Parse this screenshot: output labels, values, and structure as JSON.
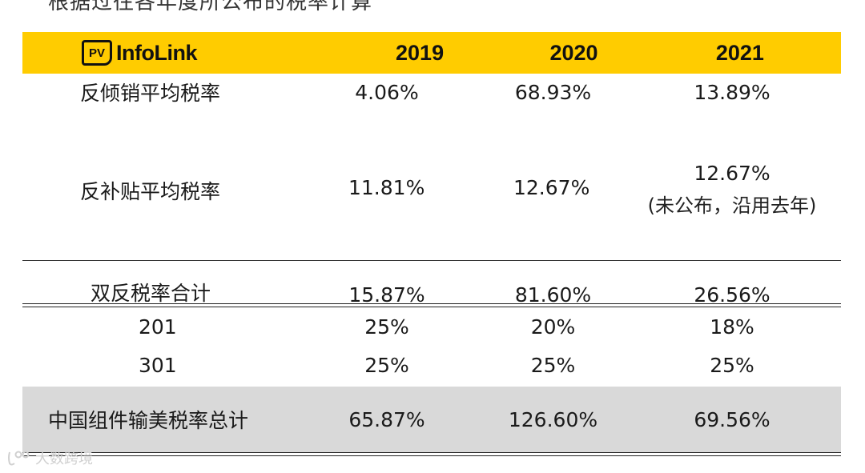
{
  "header_cut_text": "根据过往各年度所公布的税率计算",
  "logo": {
    "badge": "PV",
    "name": "InfoLink"
  },
  "years": [
    "2019",
    "2020",
    "2021"
  ],
  "rows": {
    "antidumping": {
      "label": "反倾销平均税率",
      "v2019": "4.06%",
      "v2020": "68.93%",
      "v2021": "13.89%"
    },
    "subsidy": {
      "label": "反补贴平均税率",
      "v2019": "11.81%",
      "v2020": "12.67%",
      "v2021": "12.67%",
      "v2021_note": "(未公布，沿用去年)"
    },
    "double": {
      "label": "双反税率合计",
      "v2019": "15.87%",
      "v2020": "81.60%",
      "v2021": "26.56%"
    },
    "s201": {
      "label": "201",
      "v2019": "25%",
      "v2020": "20%",
      "v2021": "18%"
    },
    "s301": {
      "label": "301",
      "v2019": "25%",
      "v2020": "25%",
      "v2021": "25%"
    },
    "total": {
      "label": "中国组件输美税率总计",
      "v2019": "65.87%",
      "v2020": "126.60%",
      "v2021": "69.56%"
    }
  },
  "watermark": "大数跨境",
  "colors": {
    "header_bg": "#ffcc00",
    "total_bg": "#d9d9d9"
  }
}
